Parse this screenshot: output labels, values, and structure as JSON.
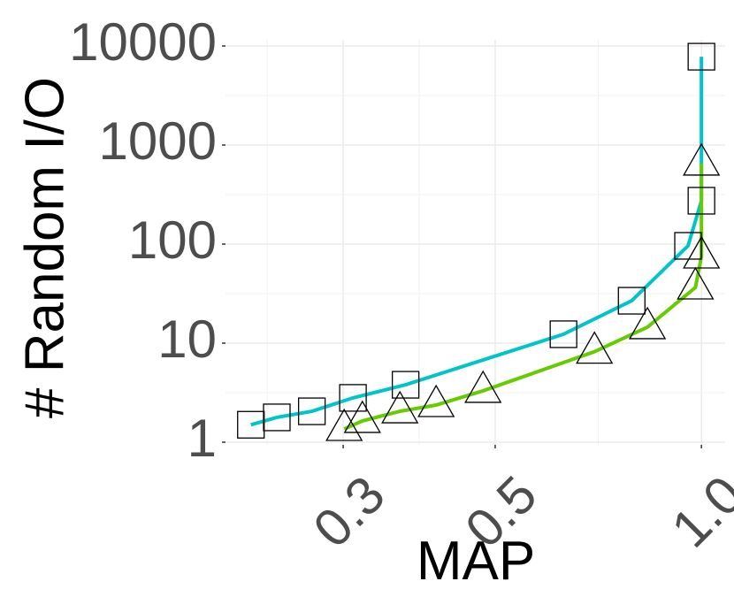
{
  "chart_data": {
    "type": "line",
    "x_label": "MAP",
    "y_label": "# Random I/O",
    "xlog": true,
    "ylog": true,
    "grid": true,
    "xlim": [
      0.202,
      1.083
    ],
    "ylim": [
      0.94,
      11550
    ],
    "xticks": [
      0.3,
      0.5,
      {
        "value": 1,
        "label": "1.0"
      }
    ],
    "yticks": [
      1,
      10,
      100,
      1000,
      10000
    ],
    "series": [
      {
        "marker": "square",
        "color": "#00c5c8",
        "x": [
          0.22,
          0.24,
          0.27,
          0.31,
          0.37,
          0.629,
          0.791,
          0.956,
          1.0,
          1.0
        ],
        "values": [
          1.5,
          1.78,
          2.05,
          2.8,
          3.8,
          12.3,
          26.8,
          96,
          274,
          7800
        ]
      },
      {
        "marker": "triangle",
        "color": "#66cc00",
        "x": [
          0.301,
          0.32,
          0.363,
          0.41,
          0.48,
          0.698,
          0.834,
          0.98,
          1.0,
          1.0
        ],
        "values": [
          1.36,
          1.64,
          2.05,
          2.37,
          3.3,
          8.2,
          14.5,
          36.5,
          75,
          650
        ]
      }
    ]
  }
}
